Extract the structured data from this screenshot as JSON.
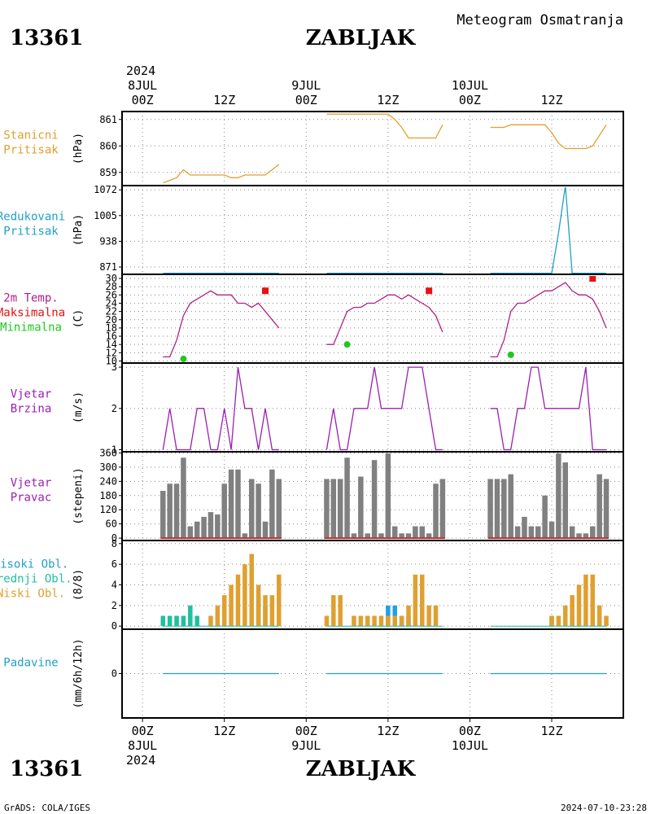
{
  "header": {
    "station_id": "13361",
    "station_name": "ZABLJAK",
    "subtitle": "Meteogram Osmatranja"
  },
  "footer": {
    "station_id": "13361",
    "station_name": "ZABLJAK",
    "credit": "GrADS: COLA/IGES",
    "timestamp": "2024-07-10-23:28"
  },
  "time_axis": {
    "top_year": "2024",
    "bottom_year": "2024",
    "ticks": [
      {
        "t": 0,
        "label": "00Z",
        "date": "8JUL"
      },
      {
        "t": 12,
        "label": "12Z",
        "date": ""
      },
      {
        "t": 24,
        "label": "00Z",
        "date": "9JUL"
      },
      {
        "t": 36,
        "label": "12Z",
        "date": ""
      },
      {
        "t": 48,
        "label": "00Z",
        "date": "10JUL"
      },
      {
        "t": 60,
        "label": "12Z",
        "date": ""
      }
    ],
    "range_hours": [
      -3,
      70.5
    ]
  },
  "colors": {
    "station_pressure": "#e0a030",
    "reduced_pressure": "#20a0c8",
    "temperature": "#b0208a",
    "maximum": "#e81010",
    "minimum": "#20c820",
    "wind": "#9a20b0",
    "direction_bar": "#808080",
    "direction_base": "#c03030",
    "high_cloud": "#20a0e8",
    "mid_cloud": "#20c0a0",
    "low_cloud": "#e0a030",
    "precip": "#20a0c8",
    "grid": "#888888"
  },
  "chart_data": [
    {
      "id": "station_pressure",
      "type": "line",
      "labels": [
        {
          "text": "Stanicni",
          "color": "#e0a030"
        },
        {
          "text": "Pritisak",
          "color": "#e0a030"
        }
      ],
      "unit": "(hPa)",
      "ylim": [
        858.5,
        861.3
      ],
      "yticks": [
        859,
        860,
        861
      ],
      "series": [
        {
          "color": "#e0a030",
          "x": [
            3,
            4,
            5,
            6,
            7,
            8,
            9,
            10,
            11,
            12,
            13,
            14,
            15,
            16,
            17,
            18,
            19,
            20
          ],
          "y": [
            858.6,
            858.7,
            858.8,
            859.1,
            858.9,
            858.9,
            858.9,
            858.9,
            858.9,
            858.9,
            858.8,
            858.8,
            858.9,
            858.9,
            858.9,
            858.9,
            859.1,
            859.3
          ]
        },
        {
          "color": "#e0a030",
          "x": [
            27,
            28,
            29,
            30,
            31,
            32,
            33,
            34,
            35,
            36,
            37,
            38,
            39,
            40,
            41,
            42,
            43,
            44
          ],
          "y": [
            861.2,
            861.2,
            861.2,
            861.2,
            861.2,
            861.2,
            861.2,
            861.2,
            861.2,
            861.2,
            861.0,
            860.7,
            860.3,
            860.3,
            860.3,
            860.3,
            860.3,
            860.8
          ]
        },
        {
          "color": "#e0a030",
          "x": [
            51,
            52,
            53,
            54,
            55,
            56,
            57,
            58,
            59,
            60,
            61,
            62,
            63,
            64,
            65,
            66,
            67,
            68
          ],
          "y": [
            860.7,
            860.7,
            860.7,
            860.8,
            860.8,
            860.8,
            860.8,
            860.8,
            860.8,
            860.5,
            860.1,
            859.9,
            859.9,
            859.9,
            859.9,
            860.0,
            860.4,
            860.8
          ]
        }
      ]
    },
    {
      "id": "reduced_pressure",
      "type": "line",
      "labels": [
        {
          "text": "Redukovani",
          "color": "#20a0c8"
        },
        {
          "text": "Pritisak",
          "color": "#20a0c8"
        }
      ],
      "unit": "(hPa)",
      "ylim": [
        852,
        1083
      ],
      "yticks": [
        871,
        938,
        1005,
        1072
      ],
      "series": [
        {
          "color": "#20a0c8",
          "x": [
            3,
            20
          ],
          "y": [
            855,
            855
          ]
        },
        {
          "color": "#20a0c8",
          "x": [
            27,
            44
          ],
          "y": [
            855,
            855
          ]
        },
        {
          "color": "#20a0c8",
          "x": [
            51,
            60,
            61,
            62,
            63,
            68
          ],
          "y": [
            855,
            855,
            960,
            1083,
            855,
            855
          ]
        }
      ]
    },
    {
      "id": "temperature",
      "type": "line",
      "labels": [
        {
          "text": "2m Temp.",
          "color": "#b0208a"
        },
        {
          "text": "Maksimalna",
          "color": "#e81010"
        },
        {
          "text": "Minimalna",
          "color": "#20c820"
        }
      ],
      "unit": "(C)",
      "ylim": [
        9.5,
        31
      ],
      "yticks": [
        10,
        12,
        14,
        16,
        18,
        20,
        22,
        24,
        26,
        28,
        30
      ],
      "series": [
        {
          "color": "#b0208a",
          "x": [
            3,
            4,
            5,
            6,
            7,
            8,
            9,
            10,
            11,
            12,
            13,
            14,
            15,
            16,
            17,
            18,
            19,
            20
          ],
          "y": [
            11,
            11,
            15,
            21,
            24,
            25,
            26,
            27,
            26,
            26,
            26,
            24,
            24,
            23,
            24,
            22,
            20,
            18
          ]
        },
        {
          "color": "#b0208a",
          "x": [
            27,
            28,
            29,
            30,
            31,
            32,
            33,
            34,
            35,
            36,
            37,
            38,
            39,
            40,
            41,
            42,
            43,
            44
          ],
          "y": [
            14,
            14,
            18,
            22,
            23,
            23,
            24,
            24,
            25,
            26,
            26,
            25,
            26,
            25,
            24,
            23,
            21,
            17
          ]
        },
        {
          "color": "#b0208a",
          "x": [
            51,
            52,
            53,
            54,
            55,
            56,
            57,
            58,
            59,
            60,
            61,
            62,
            63,
            64,
            65,
            66,
            67,
            68
          ],
          "y": [
            11,
            11,
            15,
            22,
            24,
            24,
            25,
            26,
            27,
            27,
            28,
            29,
            27,
            26,
            26,
            25,
            22,
            18
          ]
        }
      ],
      "maximum": {
        "color": "#e81010",
        "x": [
          18,
          42,
          66
        ],
        "y": [
          27,
          27,
          30
        ]
      },
      "minimum": {
        "color": "#20c820",
        "x": [
          6,
          30,
          54
        ],
        "y": [
          10.5,
          14,
          11.5
        ]
      }
    },
    {
      "id": "wind_speed",
      "type": "line",
      "labels": [
        {
          "text": "Vjetar",
          "color": "#9a20b0"
        },
        {
          "text": "Brzina",
          "color": "#9a20b0"
        }
      ],
      "unit": "(m/s)",
      "ylim": [
        0.95,
        3.1
      ],
      "yticks": [
        1,
        2,
        3
      ],
      "series": [
        {
          "color": "#9a20b0",
          "x": [
            3,
            4,
            5,
            6,
            7,
            8,
            9,
            10,
            11,
            12,
            13,
            14,
            15,
            16,
            17,
            18,
            19,
            20
          ],
          "y": [
            1,
            2,
            1,
            1,
            1,
            2,
            2,
            1,
            1,
            2,
            1,
            3,
            2,
            2,
            1,
            2,
            1,
            1
          ]
        },
        {
          "color": "#9a20b0",
          "x": [
            27,
            28,
            29,
            30,
            31,
            32,
            33,
            34,
            35,
            36,
            37,
            38,
            39,
            40,
            41,
            42,
            43,
            44
          ],
          "y": [
            1,
            2,
            1,
            1,
            2,
            2,
            2,
            3,
            2,
            2,
            2,
            2,
            3,
            3,
            3,
            2,
            1,
            1
          ]
        },
        {
          "color": "#9a20b0",
          "x": [
            51,
            52,
            53,
            54,
            55,
            56,
            57,
            58,
            59,
            60,
            61,
            62,
            63,
            64,
            65,
            66,
            67,
            68
          ],
          "y": [
            2,
            2,
            1,
            1,
            2,
            2,
            3,
            3,
            2,
            2,
            2,
            2,
            2,
            2,
            3,
            1,
            1,
            1
          ]
        }
      ]
    },
    {
      "id": "wind_direction",
      "type": "bar",
      "labels": [
        {
          "text": "Vjetar",
          "color": "#9a20b0"
        },
        {
          "text": "Pravac",
          "color": "#9a20b0"
        }
      ],
      "unit": "(stepeni)",
      "ylim": [
        -10,
        365
      ],
      "yticks": [
        0,
        60,
        120,
        180,
        240,
        300,
        360
      ],
      "bar_color": "#808080",
      "base_color": "#c03030",
      "base_segments": [
        [
          3,
          20
        ],
        [
          27,
          44
        ],
        [
          51,
          68
        ]
      ],
      "x": [
        3,
        4,
        5,
        6,
        7,
        8,
        9,
        10,
        11,
        12,
        13,
        14,
        15,
        16,
        17,
        18,
        19,
        20,
        27,
        28,
        29,
        30,
        31,
        32,
        33,
        34,
        35,
        36,
        37,
        38,
        39,
        40,
        41,
        42,
        43,
        44,
        51,
        52,
        53,
        54,
        55,
        56,
        57,
        58,
        59,
        60,
        61,
        62,
        63,
        64,
        65,
        66,
        67,
        68
      ],
      "values": [
        200,
        230,
        230,
        340,
        50,
        70,
        90,
        110,
        100,
        230,
        290,
        290,
        20,
        250,
        230,
        70,
        290,
        250,
        250,
        250,
        250,
        340,
        20,
        260,
        20,
        330,
        20,
        360,
        50,
        20,
        20,
        50,
        50,
        20,
        230,
        250,
        250,
        250,
        250,
        270,
        50,
        90,
        50,
        50,
        180,
        70,
        360,
        320,
        50,
        20,
        20,
        50,
        270,
        250
      ]
    },
    {
      "id": "clouds",
      "type": "bar",
      "labels": [
        {
          "text": "Visoki Obl.",
          "color": "#20a0c8"
        },
        {
          "text": "Srednji Obl.",
          "color": "#20c0a0"
        },
        {
          "text": "Niski Obl.",
          "color": "#e0a030"
        }
      ],
      "unit": "(8/8)",
      "ylim": [
        -0.3,
        8.3
      ],
      "yticks": [
        0,
        2,
        4,
        6,
        8
      ],
      "x": [
        3,
        4,
        5,
        6,
        7,
        8,
        9,
        10,
        11,
        12,
        13,
        14,
        15,
        16,
        17,
        18,
        19,
        20,
        27,
        28,
        29,
        30,
        31,
        32,
        33,
        34,
        35,
        36,
        37,
        38,
        39,
        40,
        41,
        42,
        43,
        44,
        51,
        52,
        53,
        54,
        55,
        56,
        57,
        58,
        59,
        60,
        61,
        62,
        63,
        64,
        65,
        66,
        67,
        68
      ],
      "series": [
        {
          "name": "Visoki Obl.",
          "color": "#20a0e8",
          "values": [
            0,
            0,
            0,
            0,
            0,
            0,
            0,
            0,
            0,
            0,
            0,
            0,
            0,
            0,
            0,
            0,
            0,
            0,
            0,
            0,
            0,
            0,
            0,
            0,
            0,
            0,
            0,
            2,
            2,
            1,
            1,
            0,
            0,
            0,
            0,
            0,
            0,
            0,
            0,
            0,
            0,
            0,
            0,
            0,
            0,
            0,
            0,
            0,
            0,
            0,
            0,
            0,
            0,
            0
          ]
        },
        {
          "name": "Srednji Obl.",
          "color": "#20c0a0",
          "values": [
            1,
            1,
            1,
            1,
            2,
            1,
            0,
            0,
            0,
            0,
            0,
            0,
            0,
            0,
            3,
            2,
            0,
            0,
            0,
            0,
            0,
            0,
            0,
            0,
            0,
            0,
            0,
            0,
            0,
            0,
            0,
            0,
            0,
            0,
            0,
            0,
            0,
            0,
            0,
            0,
            0,
            0,
            0,
            0,
            0,
            1,
            0,
            0,
            1,
            0,
            0,
            0,
            0,
            0
          ]
        },
        {
          "name": "Niski Obl.",
          "color": "#e0a030",
          "values": [
            0,
            0,
            0,
            0,
            0,
            0,
            0,
            1,
            2,
            3,
            4,
            5,
            6,
            7,
            4,
            3,
            3,
            5,
            1,
            3,
            3,
            0,
            1,
            1,
            1,
            1,
            1,
            1,
            1,
            1,
            2,
            5,
            5,
            2,
            2,
            0,
            0,
            0,
            0,
            0,
            0,
            0,
            0,
            0,
            0,
            1,
            1,
            2,
            3,
            4,
            5,
            5,
            2,
            1
          ]
        }
      ]
    },
    {
      "id": "precipitation",
      "type": "line",
      "labels": [
        {
          "text": "Padavine",
          "color": "#20a0c8"
        }
      ],
      "unit": "(mm/6h/12h)",
      "ylim": [
        -1,
        1
      ],
      "yticks": [
        0
      ],
      "series": [
        {
          "color": "#20a0c8",
          "x": [
            3,
            20
          ],
          "y": [
            0,
            0
          ]
        },
        {
          "color": "#20a0c8",
          "x": [
            27,
            44
          ],
          "y": [
            0,
            0
          ]
        },
        {
          "color": "#20a0c8",
          "x": [
            51,
            68
          ],
          "y": [
            0,
            0
          ]
        }
      ]
    }
  ]
}
